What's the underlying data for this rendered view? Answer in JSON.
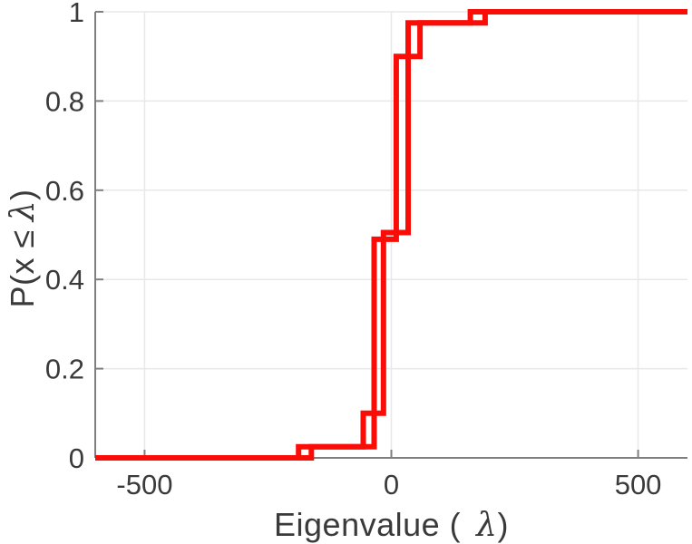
{
  "figure": {
    "background": "#ffffff"
  },
  "labels": {
    "xlabel_pre": "Eigenvalue (",
    "ylabel_pre": "P(x ≤",
    "lambda": "λ",
    "close_paren": ")"
  },
  "chart_data": {
    "type": "line",
    "subtype": "ecdf-stairs",
    "title": "",
    "xlabel": "Eigenvalue ( λ)",
    "ylabel": "P(x ≤ λ)",
    "xlim": [
      -600,
      600
    ],
    "ylim": [
      0,
      1
    ],
    "x_ticks": [
      -500,
      0,
      500
    ],
    "y_ticks": [
      0,
      0.2,
      0.4,
      0.6,
      0.8,
      1
    ],
    "grid": true,
    "legend": "none",
    "line_color": "#fa0d06",
    "line_width": 6,
    "axis_color": "#7f7f7f",
    "grid_color": "#e8e8e8",
    "tick_label_color": "#3a3a3a",
    "series": [
      {
        "name": "ecdf-curve-1",
        "jump_x": [
          -188,
          -57,
          -16,
          34,
          190
        ],
        "levels": [
          0,
          0.025,
          0.1,
          0.505,
          0.975,
          1
        ]
      },
      {
        "name": "ecdf-curve-2",
        "jump_x": [
          -162,
          -35,
          10,
          58,
          160
        ],
        "levels": [
          0,
          0.025,
          0.49,
          0.9,
          0.975,
          1
        ]
      }
    ]
  }
}
